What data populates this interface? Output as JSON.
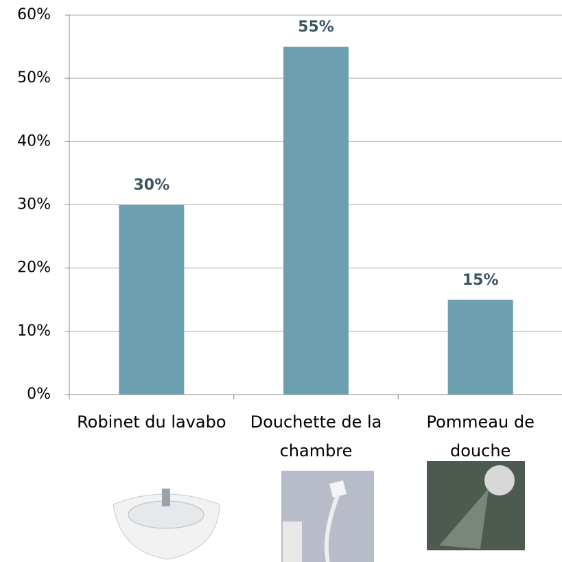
{
  "chart_data": {
    "type": "bar",
    "categories": [
      "Robinet du lavabo",
      "Douchette de la chambre",
      "Pommeau de douche"
    ],
    "values": [
      30,
      55,
      15
    ],
    "value_labels": [
      "30%",
      "55%",
      "15%"
    ],
    "color": "#6c9fb0",
    "ylim": [
      0,
      60
    ],
    "yticks": [
      {
        "value": 0,
        "label": "0%"
      },
      {
        "value": 10,
        "label": "10%"
      },
      {
        "value": 20,
        "label": "20%"
      },
      {
        "value": 30,
        "label": "30%"
      },
      {
        "value": 40,
        "label": "40%"
      },
      {
        "value": 50,
        "label": "50%"
      },
      {
        "value": 60,
        "label": "60%"
      }
    ],
    "grid": true
  }
}
